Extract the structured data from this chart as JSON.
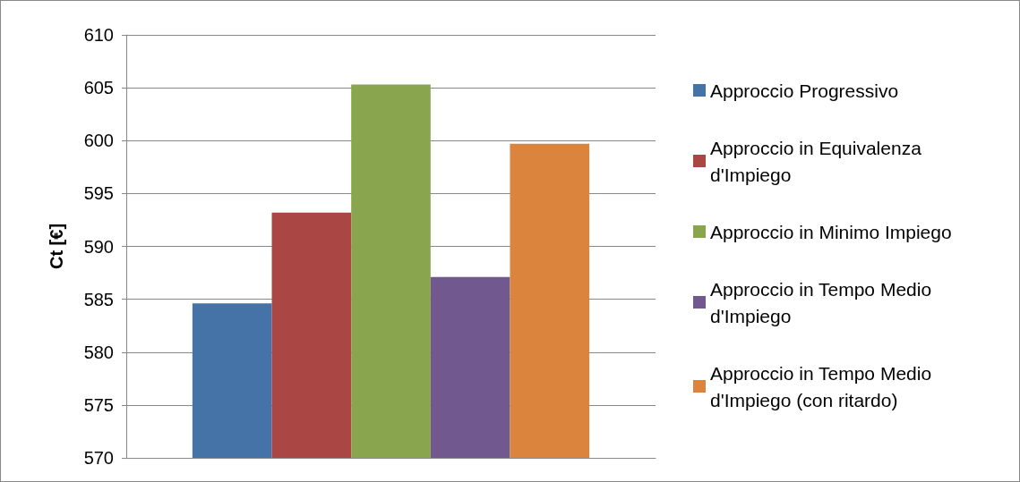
{
  "chart_data": {
    "type": "bar",
    "ylabel": "Ct [€]",
    "categories": [
      null
    ],
    "series": [
      {
        "name": "Approccio Progressivo",
        "color": "#4572a7",
        "values": [
          584.6
        ]
      },
      {
        "name": "Approccio in Equivalenza d'Impiego",
        "color": "#aa4643",
        "values": [
          593.2
        ]
      },
      {
        "name": "Approccio in Minimo Impiego",
        "color": "#89a54e",
        "values": [
          605.3
        ]
      },
      {
        "name": "Approccio in Tempo Medio d'Impiego",
        "color": "#71588f",
        "values": [
          587.1
        ]
      },
      {
        "name": "Approccio in Tempo Medio d'Impiego (con ritardo)",
        "color": "#db843d",
        "values": [
          599.7
        ]
      }
    ],
    "ylim": [
      570,
      610
    ],
    "yticks": [
      570,
      575,
      580,
      585,
      590,
      595,
      600,
      605,
      610
    ],
    "grid": "y",
    "legend": "right"
  }
}
